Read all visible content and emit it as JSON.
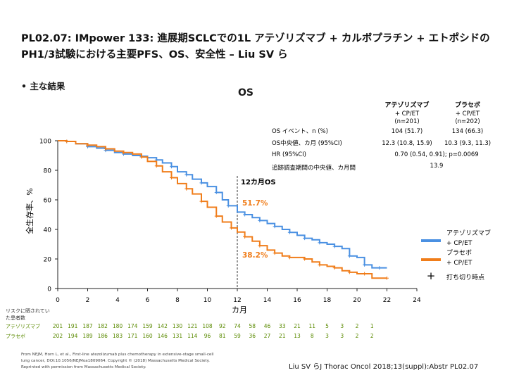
{
  "slide": {
    "title_line1": "PL02.07: IMpower 133: 進展期SCLCでの1L アテゾリズマブ + カルボプラチン + エトポシドの",
    "title_line2": "PH1/3試験における主要PFS、OS、安全性 – Liu SV ら",
    "bullet": "•  主な結果",
    "section_title": "OS"
  },
  "stats_table": {
    "col1_header": [
      "アテゾリズマブ",
      "+ CP/ET",
      "(n=201)"
    ],
    "col2_header": [
      "プラセボ",
      "+ CP/ET",
      "(n=202)"
    ],
    "rows": [
      {
        "label": "OS イベント、n (%)",
        "col1": "104 (51.7)",
        "col2": "134 (66.3)"
      },
      {
        "label": "OS中央値、カ月 (95%CI)",
        "col1": "12.3 (10.8, 15.9)",
        "col2": "10.3 (9.3, 11.3)"
      },
      {
        "label": "HR (95%CI)",
        "merged": "0.70 (0.54, 0.91); p=0.0069"
      },
      {
        "label": "追跡調査期間の中央値、カ月間",
        "merged": "13.9"
      }
    ]
  },
  "annotations": {
    "landmark_label": "12カ月OS",
    "atezo_value": "51.7%",
    "placebo_value": "38.2%"
  },
  "legend": {
    "atezo_line1": "アテゾリズマブ",
    "atezo_line2": "+ CP/ET",
    "placebo_line1": "プラセボ",
    "placebo_line2": "+ CP/ET",
    "censor_symbol": "+",
    "censor_label": "打ち切り時点"
  },
  "risk_table": {
    "header_line1": "リスクに晒されてい",
    "header_line2": "た患者数",
    "rows": [
      {
        "name": "アテゾリズマブ",
        "values": [
          "201",
          "191",
          "187",
          "182",
          "180",
          "174",
          "159",
          "142",
          "130",
          "121",
          "108",
          "92",
          "74",
          "58",
          "46",
          "33",
          "21",
          "11",
          "5",
          "3",
          "2",
          "1"
        ]
      },
      {
        "name": "プラセボ",
        "values": [
          "202",
          "194",
          "189",
          "186",
          "183",
          "171",
          "160",
          "146",
          "131",
          "114",
          "96",
          "81",
          "59",
          "36",
          "27",
          "21",
          "13",
          "8",
          "3",
          "3",
          "2",
          "2"
        ]
      }
    ]
  },
  "footer": {
    "source_line1": "From NEJM, Horn L, et al., First-line atezolizumab plus chemotherapy in extensive-stage small-cell",
    "source_line2": "lung cancer, DOI:10.1056/NEJMoa1809064. Copyright © (2018) Massachusetts Medical Society.",
    "source_line3": "Reprinted with permission from Massachusetts Medical Society.",
    "citation": "Liu SV らJ Thorac Oncol 2018;13(suppl):Abstr PL02.07"
  },
  "colors": {
    "atezo": "#4a90e2",
    "placebo": "#f07d1a",
    "annotation": "#f07d1a",
    "risk_text": "#5a8a00"
  },
  "chart_data": {
    "type": "line",
    "title": "OS",
    "xlabel": "カ月",
    "ylabel": "全生存率、%",
    "xlim": [
      0,
      24
    ],
    "ylim": [
      0,
      100
    ],
    "x_ticks": [
      0,
      2,
      4,
      6,
      8,
      10,
      12,
      14,
      16,
      18,
      20,
      22,
      24
    ],
    "y_ticks": [
      0,
      20,
      40,
      60,
      80,
      100
    ],
    "landmark_month": 12,
    "series": [
      {
        "name": "アテゾリズマブ + CP/ET",
        "color": "#4a90e2",
        "points": [
          [
            0,
            100
          ],
          [
            0.6,
            99.5
          ],
          [
            1.2,
            98
          ],
          [
            2,
            96
          ],
          [
            2.6,
            95
          ],
          [
            3.2,
            93.5
          ],
          [
            3.8,
            92
          ],
          [
            4.4,
            91
          ],
          [
            5,
            90
          ],
          [
            5.6,
            89.5
          ],
          [
            6,
            88.5
          ],
          [
            6.6,
            87
          ],
          [
            7,
            85
          ],
          [
            7.6,
            82.5
          ],
          [
            8,
            79
          ],
          [
            8.6,
            77
          ],
          [
            9,
            74
          ],
          [
            9.6,
            71.5
          ],
          [
            10,
            69
          ],
          [
            10.6,
            65
          ],
          [
            11,
            60
          ],
          [
            11.4,
            56
          ],
          [
            12,
            51.7
          ],
          [
            12.5,
            50
          ],
          [
            13,
            48
          ],
          [
            13.5,
            46
          ],
          [
            14,
            44
          ],
          [
            14.5,
            42
          ],
          [
            15,
            40
          ],
          [
            15.5,
            38
          ],
          [
            16,
            36
          ],
          [
            16.5,
            34
          ],
          [
            17,
            33
          ],
          [
            17.5,
            31
          ],
          [
            18,
            30
          ],
          [
            18.5,
            28.5
          ],
          [
            19,
            27
          ],
          [
            19.5,
            22
          ],
          [
            20,
            21
          ],
          [
            20.5,
            16
          ],
          [
            21,
            14
          ],
          [
            21.5,
            14
          ],
          [
            22,
            14
          ]
        ]
      },
      {
        "name": "プラセボ + CP/ET",
        "color": "#f07d1a",
        "points": [
          [
            0,
            100
          ],
          [
            0.6,
            99.5
          ],
          [
            1.2,
            98
          ],
          [
            2,
            97
          ],
          [
            2.6,
            96
          ],
          [
            3.2,
            94.5
          ],
          [
            3.8,
            93
          ],
          [
            4.4,
            92
          ],
          [
            5,
            91
          ],
          [
            5.6,
            89
          ],
          [
            6,
            86
          ],
          [
            6.6,
            83
          ],
          [
            7,
            79
          ],
          [
            7.6,
            75
          ],
          [
            8,
            71
          ],
          [
            8.6,
            67.5
          ],
          [
            9,
            64
          ],
          [
            9.6,
            59
          ],
          [
            10,
            55
          ],
          [
            10.6,
            49
          ],
          [
            11,
            45
          ],
          [
            11.6,
            41
          ],
          [
            12,
            38.2
          ],
          [
            12.5,
            35
          ],
          [
            13,
            32
          ],
          [
            13.5,
            29
          ],
          [
            14,
            26
          ],
          [
            14.5,
            24
          ],
          [
            15,
            22
          ],
          [
            15.5,
            21
          ],
          [
            16,
            21
          ],
          [
            16.5,
            20
          ],
          [
            17,
            18
          ],
          [
            17.5,
            16
          ],
          [
            18,
            15
          ],
          [
            18.5,
            14
          ],
          [
            19,
            12
          ],
          [
            19.5,
            11
          ],
          [
            20,
            10
          ],
          [
            20.5,
            10
          ],
          [
            21,
            7
          ],
          [
            22,
            7
          ]
        ]
      }
    ]
  }
}
